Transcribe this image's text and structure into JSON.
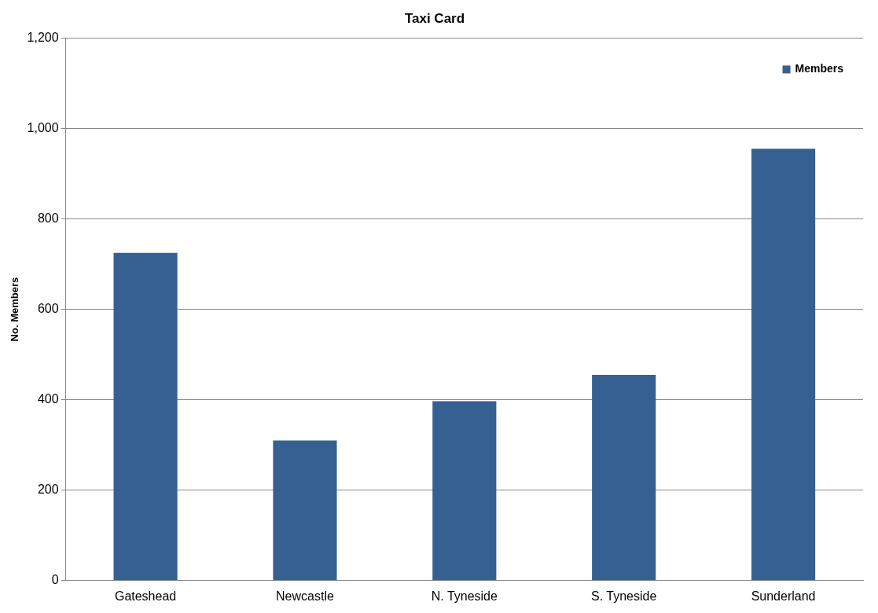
{
  "chart_data": {
    "type": "bar",
    "title": "Taxi Card",
    "ylabel": "No. Members",
    "categories": [
      "Gateshead",
      "Newcastle",
      "N. Tyneside",
      "S. Tyneside",
      "Sunderland"
    ],
    "series": [
      {
        "name": "Members",
        "color": "#376092",
        "values": [
          725,
          310,
          397,
          455,
          955
        ]
      }
    ],
    "ylim": [
      0,
      1200
    ],
    "yticks": [
      0,
      200,
      400,
      600,
      800,
      {
        "value": 1000,
        "label": "1,000"
      },
      {
        "value": 1200,
        "label": "1,200"
      }
    ],
    "grid": "y",
    "legend": "top right"
  }
}
